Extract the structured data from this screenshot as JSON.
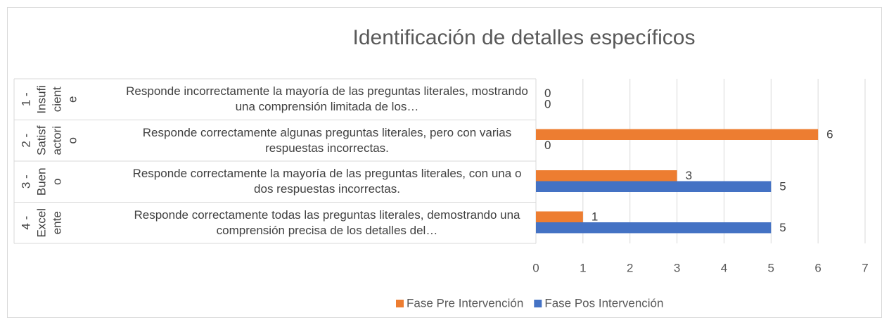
{
  "chart_data": {
    "type": "bar",
    "orientation": "horizontal",
    "title": "Identificación de detalles específicos",
    "category_groups": [
      [
        "1 -",
        "Insufi",
        "cient",
        "e"
      ],
      [
        "2 -",
        "Satisf",
        "actori",
        "o"
      ],
      [
        "3 -",
        "Buen",
        "o"
      ],
      [
        "4 -",
        "Excel",
        "ente"
      ]
    ],
    "categories": [
      "Responde incorrectamente la mayoría de las preguntas literales, mostrando una comprensión limitada de los…",
      "Responde correctamente algunas preguntas literales, pero con varias respuestas incorrectas.",
      "Responde correctamente la mayoría de las preguntas literales, con una o dos respuestas incorrectas.",
      "Responde correctamente todas las preguntas literales, demostrando una comprensión precisa de los detalles del…"
    ],
    "series": [
      {
        "name": "Fase Pre Intervención",
        "color": "#ed7d31",
        "values": [
          0,
          6,
          3,
          1
        ]
      },
      {
        "name": "Fase Pos Intervención",
        "color": "#4472c4",
        "values": [
          0,
          0,
          5,
          5
        ]
      }
    ],
    "xlim": [
      0,
      7
    ],
    "xticks": [
      0,
      1,
      2,
      3,
      4,
      5,
      6,
      7
    ],
    "grid": true,
    "legend": "bottom"
  }
}
